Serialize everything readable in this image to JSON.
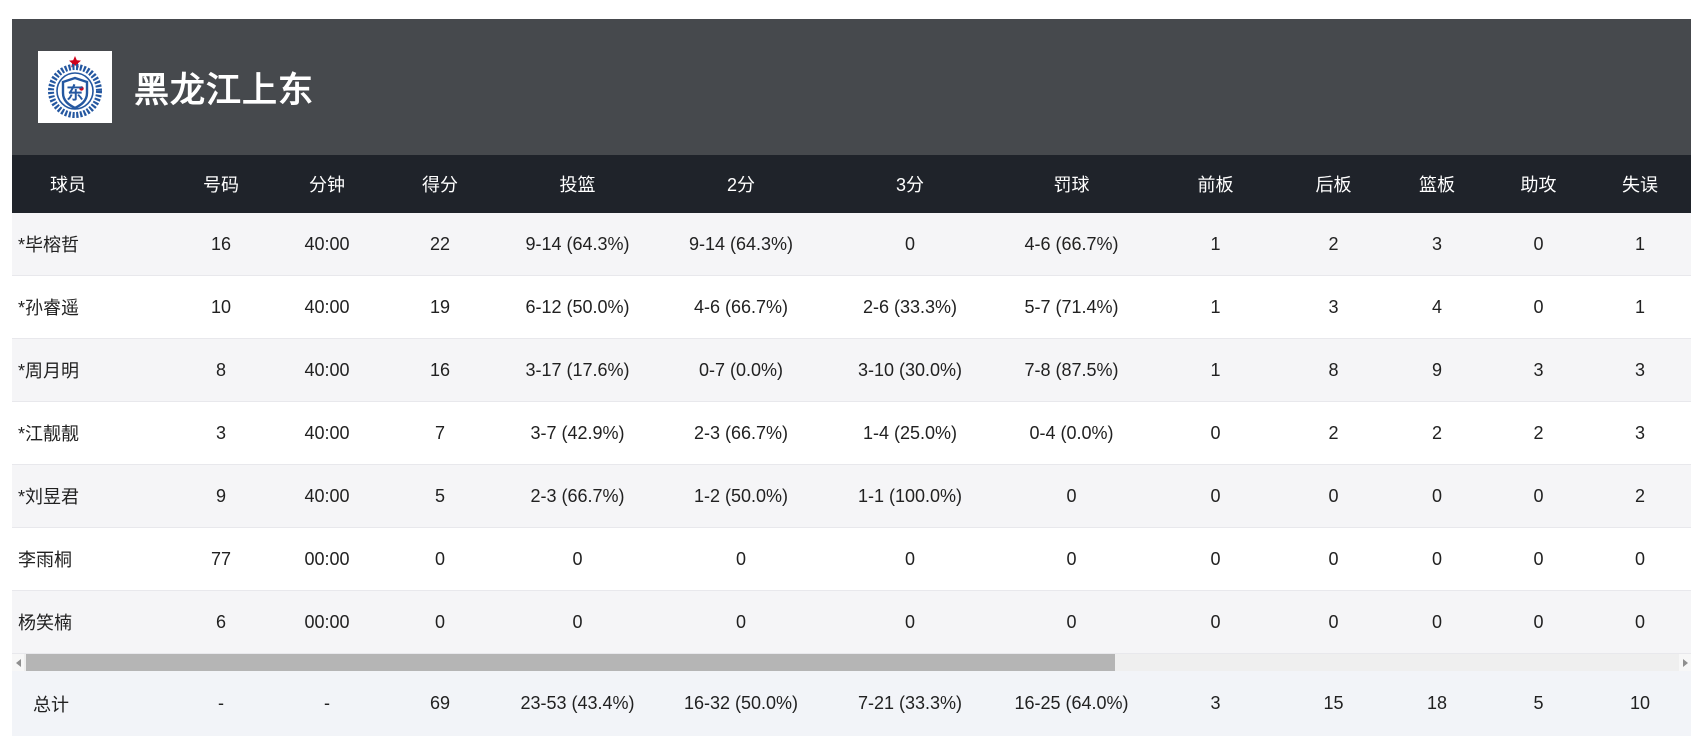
{
  "team": {
    "name": "黑龙江上东",
    "logo": "team-crest",
    "logo_center_char": "东"
  },
  "colors": {
    "banner_bg": "#46494D",
    "header_bg": "#1F232A",
    "row_alt_bg": "#F5F5F7",
    "total_bg": "#F2F4F8",
    "logo_blue": "#2457A0",
    "logo_red": "#D0021B",
    "scrollbar_thumb": "#B5B5B5"
  },
  "table": {
    "columns": [
      "球员",
      "号码",
      "分钟",
      "得分",
      "投篮",
      "2分",
      "3分",
      "罚球",
      "前板",
      "后板",
      "篮板",
      "助攻",
      "失误"
    ],
    "rows": [
      [
        "*毕榕哲",
        "16",
        "40:00",
        "22",
        "9-14 (64.3%)",
        "9-14 (64.3%)",
        "0",
        "4-6 (66.7%)",
        "1",
        "2",
        "3",
        "0",
        "1"
      ],
      [
        "*孙睿遥",
        "10",
        "40:00",
        "19",
        "6-12 (50.0%)",
        "4-6 (66.7%)",
        "2-6 (33.3%)",
        "5-7 (71.4%)",
        "1",
        "3",
        "4",
        "0",
        "1"
      ],
      [
        "*周月明",
        "8",
        "40:00",
        "16",
        "3-17 (17.6%)",
        "0-7 (0.0%)",
        "3-10 (30.0%)",
        "7-8 (87.5%)",
        "1",
        "8",
        "9",
        "3",
        "3"
      ],
      [
        "*江靓靓",
        "3",
        "40:00",
        "7",
        "3-7 (42.9%)",
        "2-3 (66.7%)",
        "1-4 (25.0%)",
        "0-4 (0.0%)",
        "0",
        "2",
        "2",
        "2",
        "3"
      ],
      [
        "*刘昱君",
        "9",
        "40:00",
        "5",
        "2-3 (66.7%)",
        "1-2 (50.0%)",
        "1-1 (100.0%)",
        "0",
        "0",
        "0",
        "0",
        "0",
        "2"
      ],
      [
        "李雨桐",
        "77",
        "00:00",
        "0",
        "0",
        "0",
        "0",
        "0",
        "0",
        "0",
        "0",
        "0",
        "0"
      ],
      [
        "杨笑楠",
        "6",
        "00:00",
        "0",
        "0",
        "0",
        "0",
        "0",
        "0",
        "0",
        "0",
        "0",
        "0"
      ]
    ],
    "total": [
      "总计",
      "-",
      "-",
      "69",
      "23-53 (43.4%)",
      "16-32 (50.0%)",
      "7-21 (33.3%)",
      "16-25 (64.0%)",
      "3",
      "15",
      "18",
      "5",
      "10"
    ]
  }
}
